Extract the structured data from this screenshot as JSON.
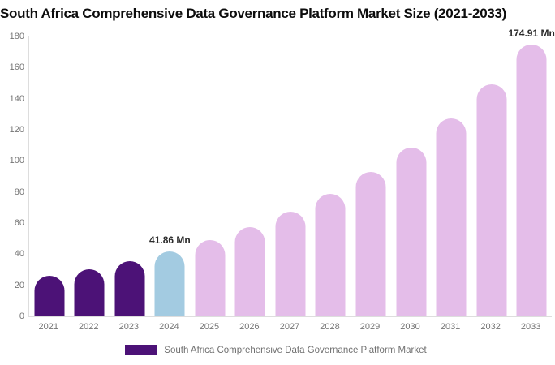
{
  "title": "South Africa Comprehensive Data Governance Platform Market Size (2021-2033)",
  "chart_data": {
    "type": "bar",
    "title": "South Africa Comprehensive Data Governance Platform Market Size (2021-2033)",
    "categories": [
      "2021",
      "2022",
      "2023",
      "2024",
      "2025",
      "2026",
      "2027",
      "2028",
      "2029",
      "2030",
      "2031",
      "2032",
      "2033"
    ],
    "values": [
      25.99,
      30.46,
      35.71,
      41.86,
      49.07,
      57.52,
      67.43,
      79.04,
      92.65,
      108.61,
      127.32,
      149.25,
      174.91
    ],
    "unit": "Mn",
    "segments": [
      "historical",
      "historical",
      "historical",
      "base",
      "forecast",
      "forecast",
      "forecast",
      "forecast",
      "forecast",
      "forecast",
      "forecast",
      "forecast",
      "forecast"
    ],
    "point_labels": {
      "2024": "41.86 Mn",
      "2033": "174.91 Mn"
    },
    "ylim": [
      0,
      180
    ],
    "ytick_step": 20,
    "yticks": [
      "0",
      "20",
      "40",
      "60",
      "80",
      "100",
      "120",
      "140",
      "160",
      "180"
    ],
    "xlabel": "",
    "ylabel": "",
    "grid": false,
    "legend_position": "bottom-center",
    "colors": {
      "historical": "#4C1277",
      "base": "#A3CBE1",
      "forecast": "#E4BDE9",
      "axis_line": "#dddddd",
      "tick_text": "#757575",
      "title_text": "#0d0d0d",
      "point_label_text": "#2b2b2b"
    },
    "legend": [
      {
        "label": "South Africa Comprehensive Data Governance Platform Market",
        "color": "#4C1277"
      }
    ]
  }
}
